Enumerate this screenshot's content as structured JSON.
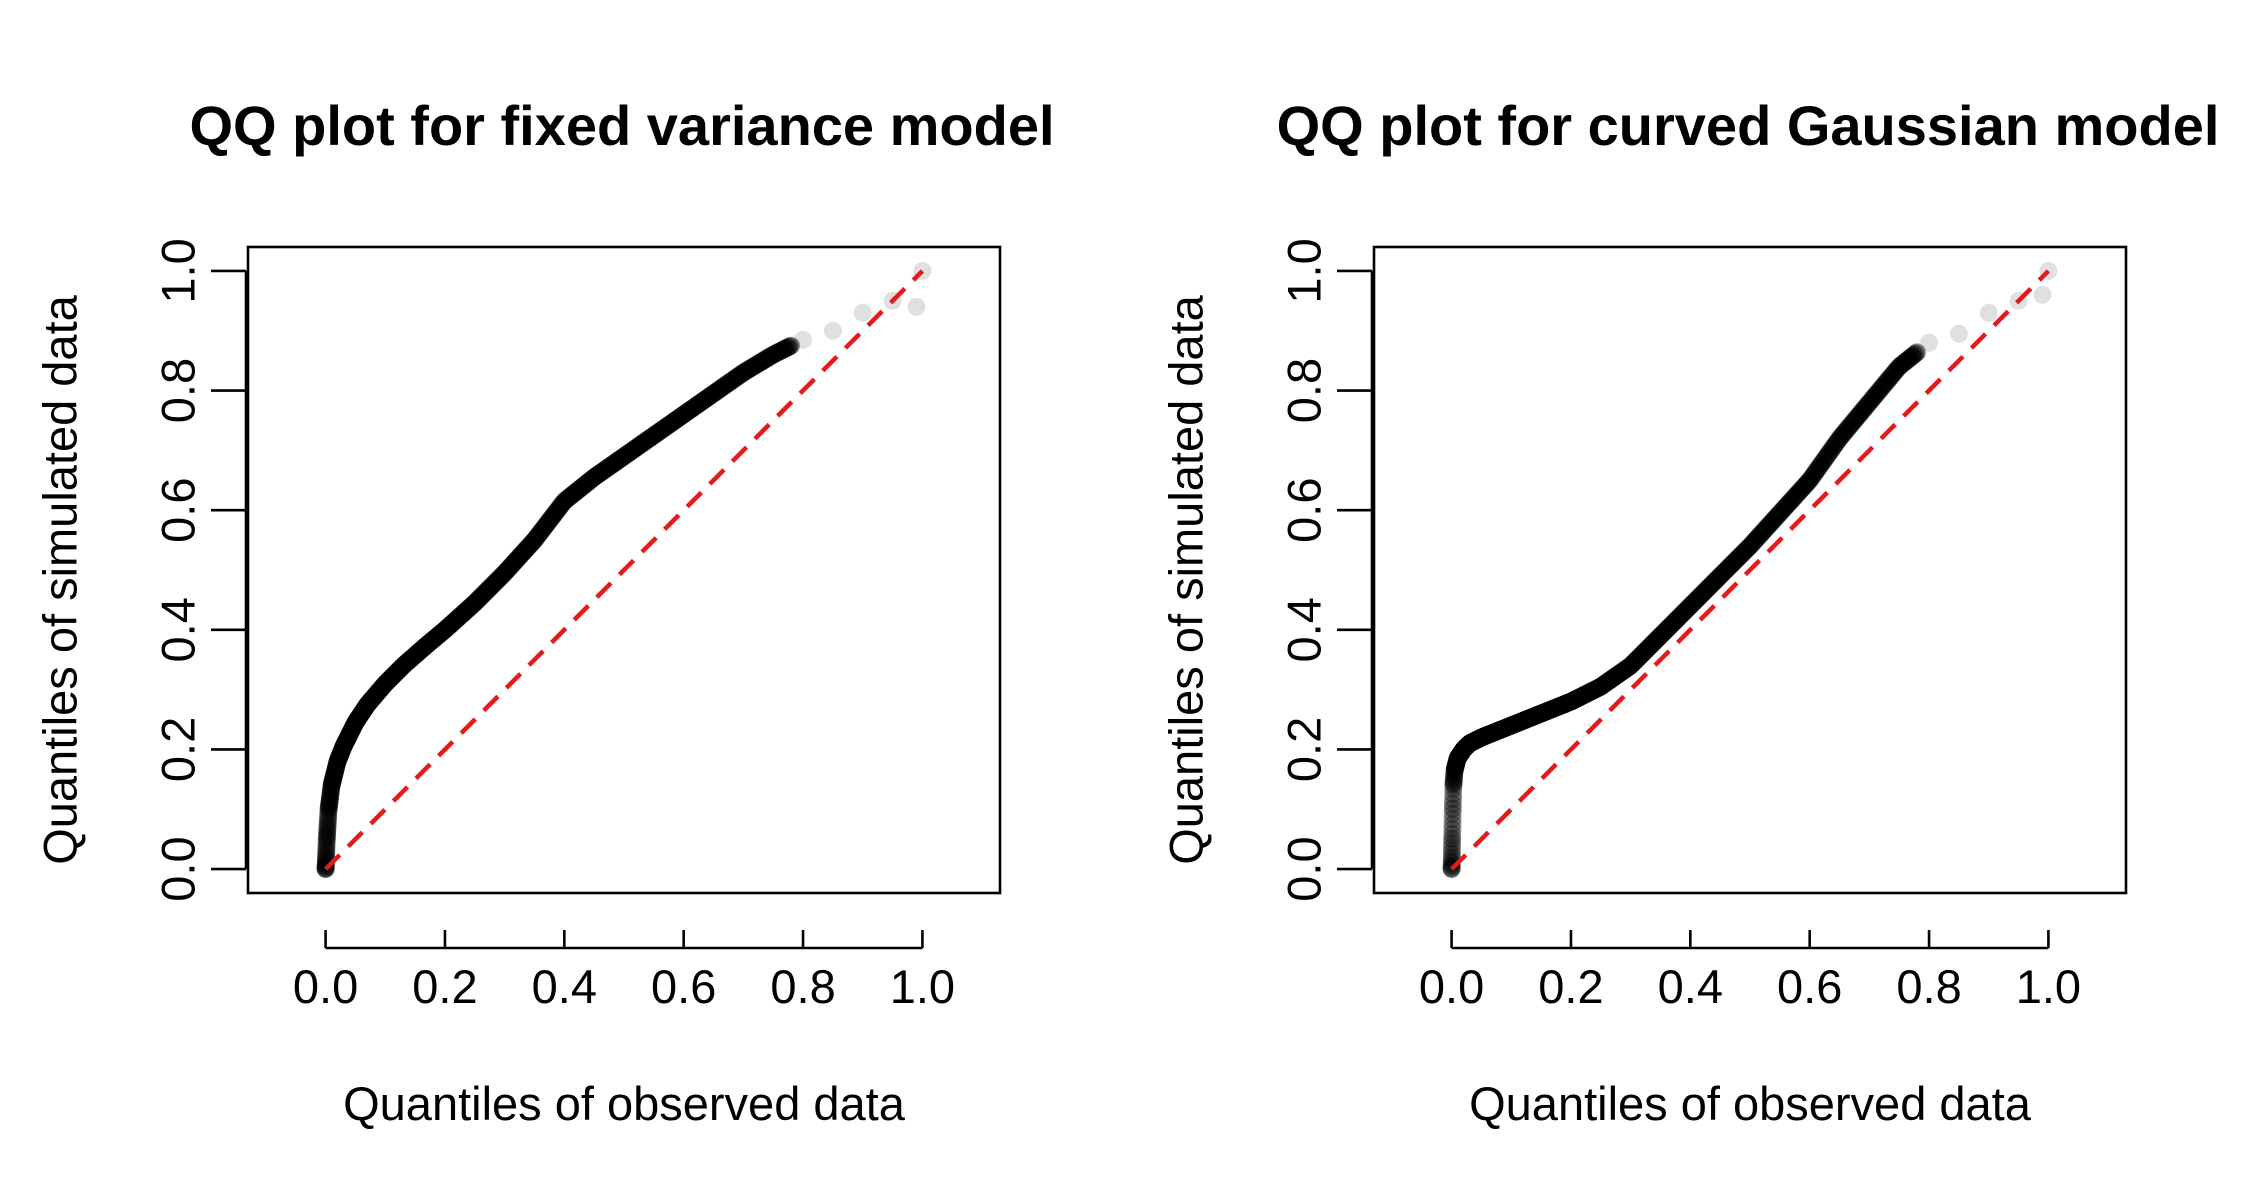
{
  "chart_data": [
    {
      "type": "scatter",
      "title": "QQ plot for fixed variance model",
      "xlabel": "Quantiles of observed data",
      "ylabel": "Quantiles of simulated data",
      "xlim": [
        -0.13,
        1.13
      ],
      "ylim": [
        -0.04,
        1.04
      ],
      "xticks": [
        "0.0",
        "0.2",
        "0.4",
        "0.6",
        "0.8",
        "1.0"
      ],
      "yticks": [
        "0.0",
        "0.2",
        "0.4",
        "0.6",
        "0.8",
        "1.0"
      ],
      "reference_line": {
        "x": [
          0,
          1
        ],
        "y": [
          0,
          1
        ],
        "color": "#e41a1c",
        "style": "dashed"
      },
      "point_color": "#000000",
      "series": [
        {
          "x": [
            0,
            0.002,
            0.005,
            0.01,
            0.02,
            0.03,
            0.05,
            0.07,
            0.1,
            0.13,
            0.17,
            0.2,
            0.25,
            0.3,
            0.35,
            0.4,
            0.45,
            0.5,
            0.55,
            0.6,
            0.65,
            0.7,
            0.75,
            0.8,
            0.85,
            0.9,
            0.95,
            0.99,
            1.0
          ],
          "y": [
            0.0,
            0.05,
            0.1,
            0.14,
            0.18,
            0.205,
            0.245,
            0.275,
            0.31,
            0.34,
            0.375,
            0.4,
            0.445,
            0.495,
            0.55,
            0.615,
            0.655,
            0.69,
            0.725,
            0.76,
            0.795,
            0.83,
            0.86,
            0.885,
            0.9,
            0.93,
            0.95,
            0.94,
            1.0
          ]
        }
      ]
    },
    {
      "type": "scatter",
      "title": "QQ plot for curved Gaussian model",
      "xlabel": "Quantiles of observed data",
      "ylabel": "Quantiles of simulated data",
      "xlim": [
        -0.13,
        1.13
      ],
      "ylim": [
        -0.04,
        1.04
      ],
      "xticks": [
        "0.0",
        "0.2",
        "0.4",
        "0.6",
        "0.8",
        "1.0"
      ],
      "yticks": [
        "0.0",
        "0.2",
        "0.4",
        "0.6",
        "0.8",
        "1.0"
      ],
      "reference_line": {
        "x": [
          0,
          1
        ],
        "y": [
          0,
          1
        ],
        "color": "#e41a1c",
        "style": "dashed"
      },
      "point_color": "#000000",
      "series": [
        {
          "x": [
            0,
            0.001,
            0.002,
            0.003,
            0.005,
            0.01,
            0.02,
            0.03,
            0.05,
            0.08,
            0.1,
            0.15,
            0.2,
            0.25,
            0.3,
            0.35,
            0.4,
            0.45,
            0.5,
            0.55,
            0.6,
            0.65,
            0.7,
            0.75,
            0.8,
            0.85,
            0.9,
            0.95,
            0.99,
            1.0
          ],
          "y": [
            0.0,
            0.05,
            0.1,
            0.14,
            0.165,
            0.185,
            0.2,
            0.21,
            0.22,
            0.232,
            0.24,
            0.26,
            0.28,
            0.305,
            0.34,
            0.39,
            0.44,
            0.49,
            0.54,
            0.595,
            0.65,
            0.72,
            0.78,
            0.84,
            0.88,
            0.895,
            0.93,
            0.95,
            0.96,
            1.0
          ]
        }
      ]
    }
  ]
}
